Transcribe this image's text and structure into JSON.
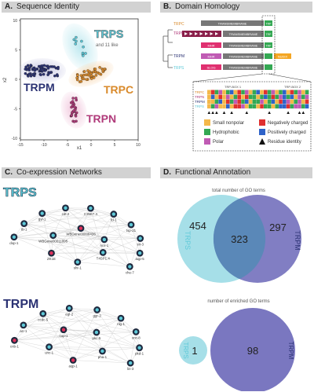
{
  "panels": {
    "a": {
      "letter": "A.",
      "title": "Sequence Identity"
    },
    "b": {
      "letter": "B.",
      "title": "Domain Homology"
    },
    "c": {
      "letter": "C.",
      "title": "Co-expression Networks"
    },
    "d": {
      "letter": "D.",
      "title": "Functional Annotation"
    }
  },
  "scatter": {
    "x_ticks": [
      "-15",
      "-10",
      "-5",
      "0",
      "5",
      "10"
    ],
    "y_ticks": [
      "10",
      "5",
      "0",
      "-5",
      "-10"
    ],
    "x_axis_label": "x1",
    "y_axis_label": "x2",
    "groups": {
      "trps": "TRPS",
      "trps_sub": "and 11 like",
      "trpm": "TRPM",
      "trpc": "TRPC",
      "trpn": "TRPN"
    },
    "cluster_colors": {
      "trps": "#5ec9d8",
      "trpm": "#2b3273",
      "trpc": "#d98a2b",
      "trpn": "#b03a7a"
    }
  },
  "domain": {
    "tree_labels": [
      "TRPC",
      "TRPN",
      "TRPM",
      "TRPS"
    ],
    "transmembrane_label": "TRANSMEMBRANE",
    "trp_label": "TRP",
    "block_labels": [
      "MHR",
      "NUDIX",
      "SLOG"
    ],
    "alignment_headers": [
      "TRP-BOX 1",
      "TRP-BOX 2"
    ],
    "alignment_rows": [
      "TRPC",
      "TRPN",
      "TRPM",
      "TRPS"
    ],
    "legend": [
      {
        "label": "Small nonpolar",
        "color": "#f4b84a"
      },
      {
        "label": "Negatively charged",
        "color": "#e03030"
      },
      {
        "label": "Hydrophobic",
        "color": "#34a853"
      },
      {
        "label": "Positively charged",
        "color": "#2f63c9"
      },
      {
        "label": "Polar",
        "color": "#c05bb4"
      },
      {
        "label": "Residue identity",
        "color": "#111111"
      }
    ]
  },
  "networks": {
    "trps_title": "TRPS",
    "trpm_title": "TRPM",
    "trps_nodes": [
      "T4SP1.4",
      "shr-1",
      "ZK1E",
      "WBGene00011995",
      "WBGene00008428",
      "ncs-1",
      "dop-1",
      "tb-1",
      "gyl-1",
      "cdt-2",
      "C35E7.4",
      "fd-1",
      "tsp-21",
      "sir-3",
      "aqp-5",
      "che-7"
    ],
    "trpm_nodes": [
      "pha-1",
      "aqp-1",
      "unc-1",
      "cup-1",
      "pkc-5",
      "cnb-1",
      "arr-1",
      "ccdc-5",
      "egl-2",
      "ggr-2",
      "nlg-1",
      "unc-8",
      "pkd-1",
      "lin-3"
    ]
  },
  "venn": {
    "top_title": "total number of GO terms",
    "top_left": "454",
    "top_overlap": "323",
    "top_right": "297",
    "bottom_title": "number of enriched GO terms",
    "bottom_left": "1",
    "bottom_right": "98",
    "set_left": "TRPS",
    "set_right": "TRPM",
    "color_left": "#a6dfe8",
    "color_right": "#7a77c0"
  }
}
